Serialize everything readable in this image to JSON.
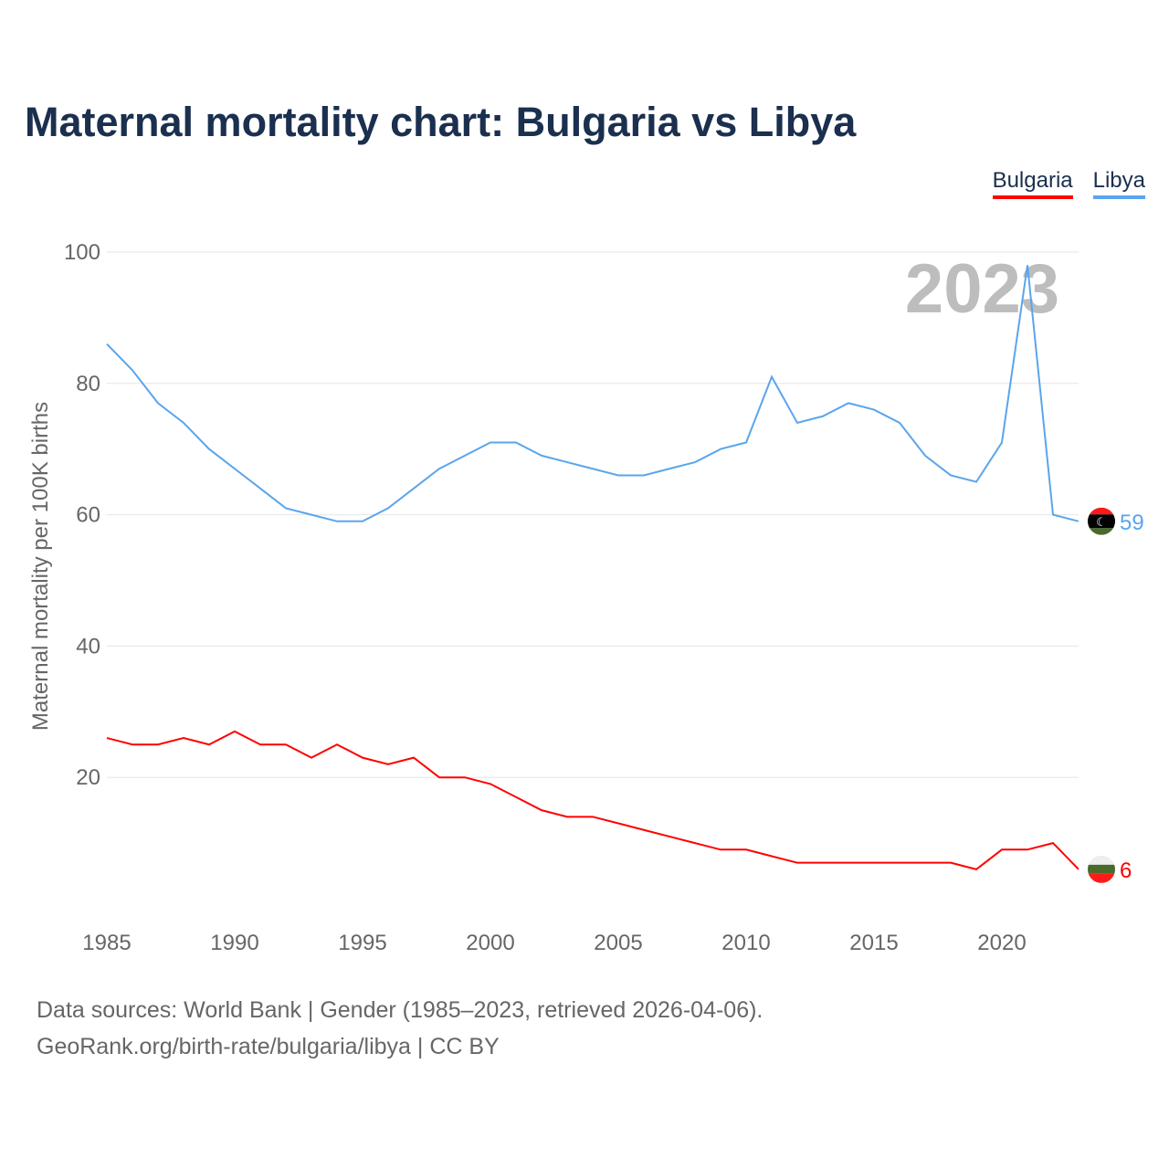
{
  "chart_data": {
    "type": "line",
    "title": "Maternal mortality chart: Bulgaria vs Libya",
    "xlabel": "",
    "ylabel": "Maternal mortality per 100K births",
    "ylim": [
      0,
      100
    ],
    "xlim": [
      1985,
      2023
    ],
    "yticks": [
      "20",
      "40",
      "60",
      "80",
      "100"
    ],
    "xticks": [
      "1985",
      "1990",
      "1995",
      "2000",
      "2005",
      "2010",
      "2015",
      "2020"
    ],
    "year_label": "2023",
    "grid": true,
    "legend_position": "top-right",
    "x": [
      1985,
      1986,
      1987,
      1988,
      1989,
      1990,
      1991,
      1992,
      1993,
      1994,
      1995,
      1996,
      1997,
      1998,
      1999,
      2000,
      2001,
      2002,
      2003,
      2004,
      2005,
      2006,
      2007,
      2008,
      2009,
      2010,
      2011,
      2012,
      2013,
      2014,
      2015,
      2016,
      2017,
      2018,
      2019,
      2020,
      2021,
      2022,
      2023
    ],
    "series": [
      {
        "name": "Bulgaria",
        "color": "#ff0000",
        "end_label": "6",
        "values": [
          26,
          25,
          25,
          26,
          25,
          27,
          25,
          25,
          23,
          25,
          23,
          22,
          23,
          20,
          20,
          19,
          17,
          15,
          14,
          14,
          13,
          12,
          11,
          10,
          9,
          9,
          8,
          7,
          7,
          7,
          7,
          7,
          7,
          7,
          6,
          9,
          9,
          10,
          6
        ]
      },
      {
        "name": "Libya",
        "color": "#5aa5ec",
        "end_label": "59",
        "values": [
          86,
          82,
          77,
          74,
          70,
          67,
          64,
          61,
          60,
          59,
          59,
          61,
          64,
          67,
          69,
          71,
          71,
          69,
          68,
          67,
          66,
          66,
          67,
          68,
          70,
          71,
          81,
          74,
          75,
          77,
          76,
          74,
          69,
          66,
          65,
          71,
          98,
          60,
          59
        ]
      }
    ]
  },
  "footer": {
    "line1": "Data sources: World Bank | Gender (1985–2023, retrieved 2026-04-06).",
    "line2": "GeoRank.org/birth-rate/bulgaria/libya | CC BY"
  }
}
